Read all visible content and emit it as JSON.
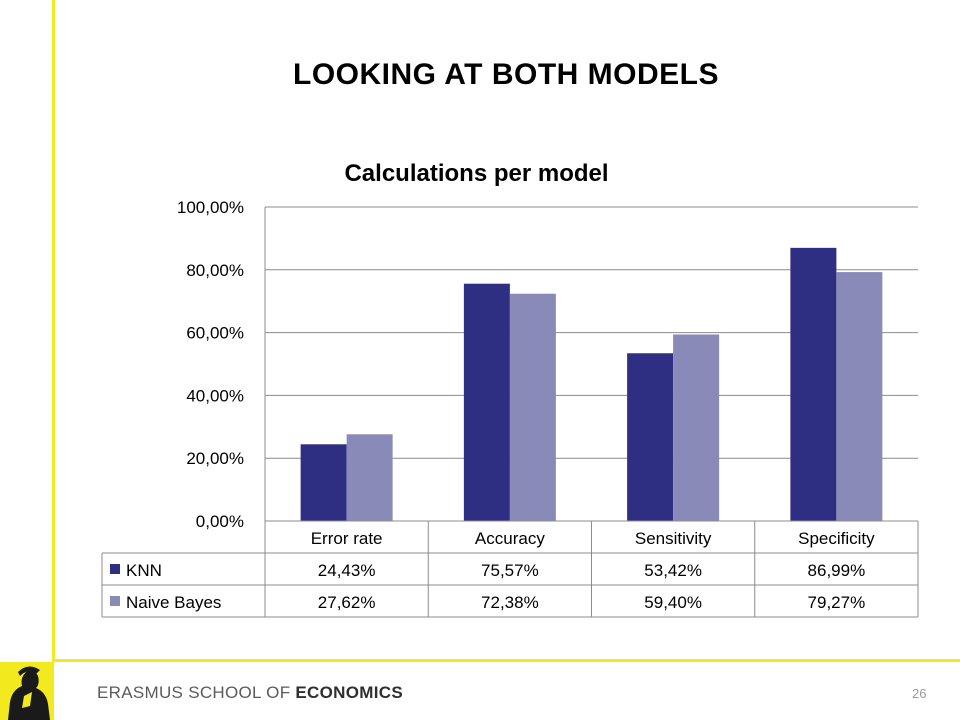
{
  "slide": {
    "title": "LOOKING AT BOTH MODELS",
    "footer_prefix": "ERASMUS SCHOOL OF ",
    "footer_bold": "ECONOMICS",
    "page_number": "26"
  },
  "chart_data": {
    "type": "bar",
    "title": "Calculations per model",
    "categories": [
      "Error rate",
      "Accuracy",
      "Sensitivity",
      "Specificity"
    ],
    "series": [
      {
        "name": "KNN",
        "values": [
          24.43,
          75.57,
          53.42,
          86.99
        ],
        "labels": [
          "24,43%",
          "75,57%",
          "53,42%",
          "86,99%"
        ],
        "color": "#2e2e83"
      },
      {
        "name": "Naive Bayes",
        "values": [
          27.62,
          72.38,
          59.4,
          79.27
        ],
        "labels": [
          "27,62%",
          "72,38%",
          "59,40%",
          "79,27%"
        ],
        "color": "#8a8ab8"
      }
    ],
    "yticks": [
      "0,00%",
      "20,00%",
      "40,00%",
      "60,00%",
      "80,00%",
      "100,00%"
    ],
    "ylim": [
      0,
      100
    ],
    "grid": true,
    "legend": "data table below chart"
  },
  "colors": {
    "accent_yellow": "#f2ea1f",
    "knn": "#2e2e83",
    "naive_bayes": "#8a8ab8"
  }
}
